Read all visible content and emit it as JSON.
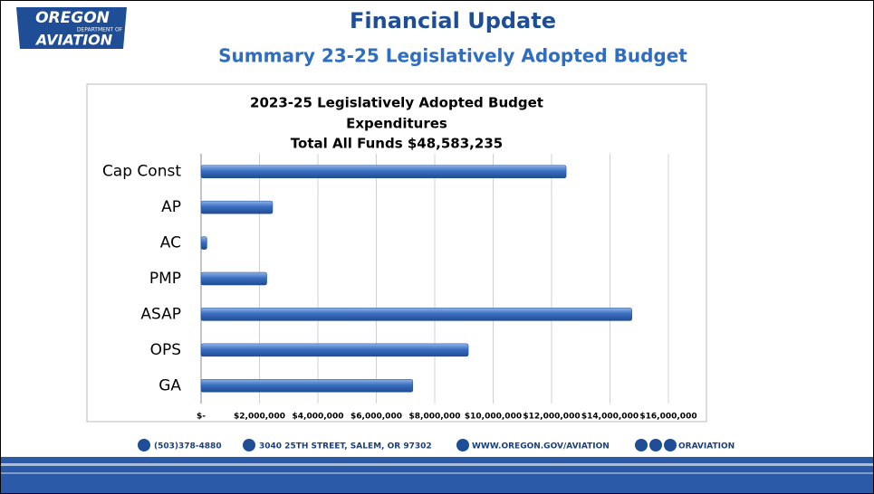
{
  "header": {
    "logo_top": "OREGON",
    "logo_middle": "DEPARTMENT OF",
    "logo_bottom": "AVIATION",
    "title": "Financial Update",
    "subtitle": "Summary 23-25 Legislatively Adopted Budget"
  },
  "chart_data": {
    "type": "barh",
    "title": "2023-25 Legislatively Adopted Budget",
    "subtitle": "Expenditures",
    "total_label": "Total All Funds  $48,583,235",
    "categories": [
      "Cap Const",
      "AP",
      "AC",
      "PMP",
      "ASAP",
      "OPS",
      "GA"
    ],
    "values": [
      12500000,
      2450000,
      200000,
      2250000,
      14750000,
      9150000,
      7250000
    ],
    "color": "#3b6fc0",
    "xlim": [
      0,
      16000000
    ],
    "xticks": [
      {
        "value": 0,
        "label": "$-"
      },
      {
        "value": 2000000,
        "label": "$2,000,000"
      },
      {
        "value": 4000000,
        "label": "$4,000,000"
      },
      {
        "value": 6000000,
        "label": "$6,000,000"
      },
      {
        "value": 8000000,
        "label": "$8,000,000"
      },
      {
        "value": 10000000,
        "label": "$10,000,000"
      },
      {
        "value": 12000000,
        "label": "$12,000,000"
      },
      {
        "value": 14000000,
        "label": "$14,000,000"
      },
      {
        "value": 16000000,
        "label": "$16,000,000"
      }
    ],
    "grid": true
  },
  "footer": {
    "phone": "(503)378-4880",
    "address": "3040 25TH STREET, SALEM, OR 97302",
    "web": "WWW.OREGON.GOV/AVIATION",
    "social": "ORAVIATION"
  }
}
